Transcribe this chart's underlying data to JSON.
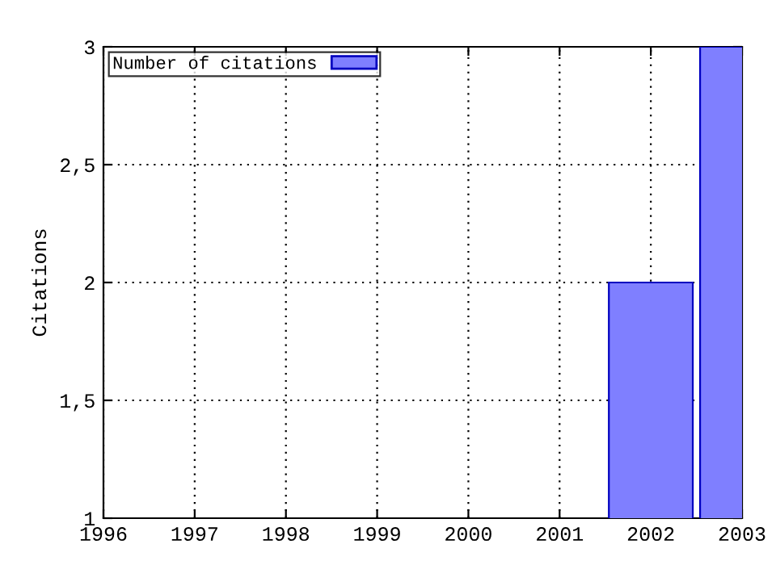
{
  "chart_data": {
    "type": "bar",
    "ylabel": "Citations",
    "x": [
      2002,
      2003
    ],
    "series": [
      {
        "name": "Number of citations",
        "color": "#7f7fff",
        "values": [
          2,
          3
        ]
      }
    ],
    "xlim": [
      1996,
      2003
    ],
    "xticks": [
      1996,
      1997,
      1998,
      1999,
      2000,
      2001,
      2002,
      2003
    ],
    "ylim": [
      1,
      3
    ],
    "yticks": [
      1,
      {
        "value": 1.5,
        "label": "1,5"
      },
      2,
      {
        "value": 2.5,
        "label": "2,5"
      },
      3
    ],
    "grid": true,
    "legend": "top left"
  }
}
